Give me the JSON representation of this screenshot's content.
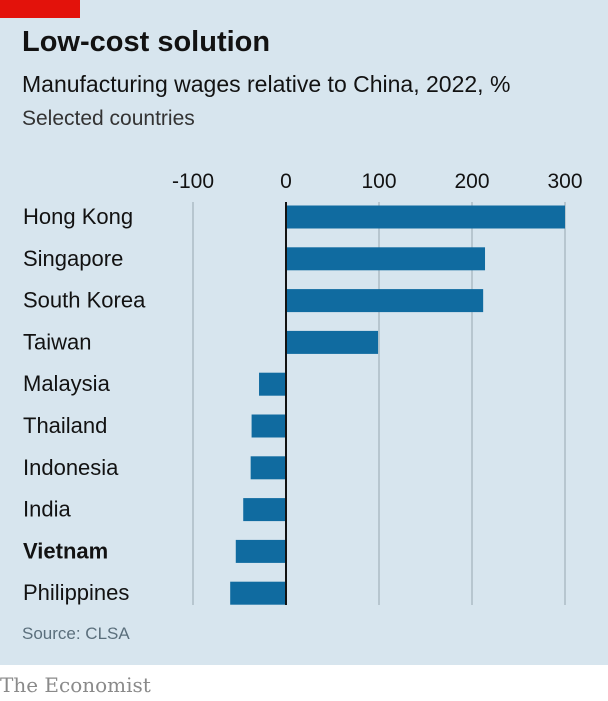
{
  "header": {
    "title": "Low-cost solution",
    "subtitle": "Manufacturing wages relative to China, 2022, %",
    "subsubtitle": "Selected countries"
  },
  "footer": {
    "source": "Source: CLSA",
    "brand": "The Economist"
  },
  "colors": {
    "bar": "#106ba0",
    "background": "#d7e5ee",
    "accent": "#e3120b",
    "grid": "#b7c6cf"
  },
  "chart_data": {
    "type": "bar",
    "orientation": "horizontal",
    "categories": [
      "Hong Kong",
      "Singapore",
      "South Korea",
      "Taiwan",
      "Malaysia",
      "Thailand",
      "Indonesia",
      "India",
      "Vietnam",
      "Philippines"
    ],
    "values": [
      300,
      214,
      212,
      99,
      -29,
      -37,
      -38,
      -46,
      -54,
      -60
    ],
    "highlight": "Vietnam",
    "xlim": [
      -100,
      300
    ],
    "xticks": [
      -100,
      0,
      100,
      200,
      300
    ],
    "grid": true
  }
}
